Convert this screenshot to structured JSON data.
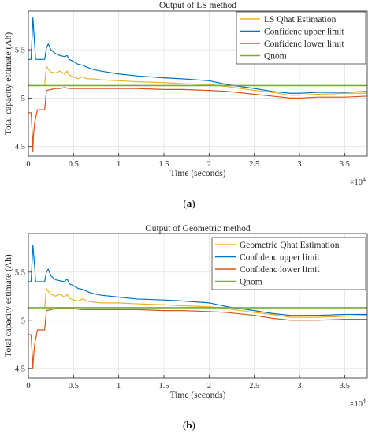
{
  "captions": [
    "(a)",
    "(b)"
  ],
  "caption_letters": [
    "a",
    "b"
  ],
  "x_multiplier": {
    "base": "×10",
    "exp": "4"
  },
  "chart_data": [
    {
      "type": "line",
      "title": "Output of LS method",
      "xlabel": "Time (seconds)",
      "ylabel": "Total capacity estimate (Ah)",
      "xlim": [
        0,
        37500
      ],
      "ylim": [
        4.4,
        5.9
      ],
      "x_ticks": [
        0,
        5000,
        10000,
        15000,
        20000,
        25000,
        30000,
        35000
      ],
      "x_tick_labels": [
        "0",
        "0.5",
        "1",
        "1.5",
        "2",
        "2.5",
        "3",
        "3.5"
      ],
      "y_ticks": [
        4.5,
        5,
        5.5
      ],
      "y_tick_labels": [
        "4.5",
        "5",
        "5.5"
      ],
      "grid": true,
      "legend_position": "top-right",
      "series": [
        {
          "name": "LS Qhat Estimation",
          "color": "#EDB120",
          "x": [
            0,
            500,
            1000,
            1500,
            1800,
            2000,
            2200,
            2500,
            3000,
            3500,
            4000,
            4300,
            4500,
            5000,
            5500,
            6000,
            6500,
            7000,
            8000,
            10000,
            12000,
            15000,
            17000,
            20000,
            22000,
            25000,
            27000,
            29000,
            30000,
            32000,
            35000,
            37500
          ],
          "y": [
            5.13,
            5.13,
            5.13,
            5.13,
            5.13,
            5.33,
            5.3,
            5.27,
            5.26,
            5.28,
            5.25,
            5.28,
            5.24,
            5.22,
            5.2,
            5.22,
            5.2,
            5.2,
            5.19,
            5.18,
            5.17,
            5.16,
            5.15,
            5.14,
            5.12,
            5.08,
            5.06,
            5.03,
            5.03,
            5.04,
            5.05,
            5.05
          ]
        },
        {
          "name": "Confidenc upper limit",
          "color": "#0072BD",
          "x": [
            0,
            300,
            500,
            700,
            800,
            1500,
            1800,
            2000,
            2200,
            2500,
            3000,
            3500,
            4000,
            4300,
            4500,
            5000,
            5500,
            6000,
            6500,
            7000,
            8000,
            10000,
            12000,
            15000,
            17000,
            20000,
            22000,
            25000,
            27000,
            29000,
            30000,
            32000,
            35000,
            37500
          ],
          "y": [
            5.4,
            5.4,
            5.83,
            5.55,
            5.4,
            5.4,
            5.4,
            5.52,
            5.56,
            5.5,
            5.46,
            5.44,
            5.43,
            5.44,
            5.4,
            5.38,
            5.35,
            5.34,
            5.32,
            5.3,
            5.28,
            5.25,
            5.23,
            5.21,
            5.2,
            5.18,
            5.14,
            5.1,
            5.07,
            5.05,
            5.05,
            5.06,
            5.06,
            5.07
          ]
        },
        {
          "name": "Confidenc lower limit",
          "color": "#D95319",
          "x": [
            0,
            300,
            450,
            500,
            550,
            700,
            1000,
            1500,
            1800,
            2000,
            2500,
            3000,
            3500,
            4000,
            4500,
            5000,
            6000,
            8000,
            10000,
            12000,
            15000,
            17000,
            20000,
            22000,
            25000,
            27000,
            29000,
            30000,
            32000,
            35000,
            37500
          ],
          "y": [
            4.85,
            4.85,
            4.6,
            4.45,
            4.6,
            4.75,
            4.88,
            4.88,
            4.88,
            5.08,
            5.09,
            5.1,
            5.1,
            5.11,
            5.1,
            5.1,
            5.1,
            5.1,
            5.1,
            5.1,
            5.09,
            5.09,
            5.08,
            5.07,
            5.04,
            5.02,
            5.0,
            5.0,
            5.01,
            5.01,
            5.02
          ]
        },
        {
          "name": "Qnom",
          "color": "#77AC30",
          "x": [
            0,
            37500
          ],
          "y": [
            5.13,
            5.13
          ]
        }
      ]
    },
    {
      "type": "line",
      "title": "Output of Geometric method",
      "xlabel": "Time (seconds)",
      "ylabel": "Total capacity estimate (Ah)",
      "xlim": [
        0,
        37500
      ],
      "ylim": [
        4.4,
        5.9
      ],
      "x_ticks": [
        0,
        5000,
        10000,
        15000,
        20000,
        25000,
        30000,
        35000
      ],
      "x_tick_labels": [
        "0",
        "0.5",
        "1",
        "1.5",
        "2",
        "2.5",
        "3",
        "3.5"
      ],
      "y_ticks": [
        4.5,
        5,
        5.5
      ],
      "y_tick_labels": [
        "4.5",
        "5",
        "5.5"
      ],
      "grid": true,
      "legend_position": "top-right",
      "series": [
        {
          "name": "Geometric Qhat Estimation",
          "color": "#EDB120",
          "x": [
            0,
            500,
            1000,
            1500,
            1800,
            2000,
            2200,
            2500,
            3000,
            3500,
            4000,
            4300,
            4500,
            5000,
            5500,
            6000,
            6500,
            7000,
            8000,
            10000,
            12000,
            15000,
            17000,
            20000,
            22000,
            25000,
            27000,
            29000,
            30000,
            32000,
            35000,
            37500
          ],
          "y": [
            5.13,
            5.13,
            5.13,
            5.13,
            5.13,
            5.33,
            5.3,
            5.27,
            5.25,
            5.27,
            5.24,
            5.27,
            5.23,
            5.21,
            5.2,
            5.22,
            5.2,
            5.19,
            5.18,
            5.18,
            5.17,
            5.16,
            5.15,
            5.14,
            5.12,
            5.08,
            5.06,
            5.03,
            5.03,
            5.03,
            5.04,
            5.05
          ]
        },
        {
          "name": "Confidenc upper limit",
          "color": "#0072BD",
          "x": [
            0,
            300,
            500,
            700,
            800,
            1500,
            1800,
            2000,
            2200,
            2500,
            3000,
            3500,
            4000,
            4300,
            4500,
            5000,
            5500,
            6000,
            6500,
            7000,
            8000,
            10000,
            12000,
            15000,
            17000,
            20000,
            22000,
            25000,
            27000,
            29000,
            30000,
            32000,
            35000,
            37500
          ],
          "y": [
            5.4,
            5.4,
            5.78,
            5.55,
            5.4,
            5.4,
            5.4,
            5.5,
            5.53,
            5.46,
            5.42,
            5.41,
            5.4,
            5.43,
            5.38,
            5.36,
            5.33,
            5.32,
            5.3,
            5.28,
            5.26,
            5.24,
            5.22,
            5.21,
            5.2,
            5.18,
            5.14,
            5.1,
            5.07,
            5.05,
            5.05,
            5.05,
            5.06,
            5.06
          ]
        },
        {
          "name": "Confidenc lower limit",
          "color": "#D95319",
          "x": [
            0,
            300,
            450,
            500,
            550,
            700,
            1000,
            1500,
            1800,
            2000,
            2500,
            3000,
            3500,
            4000,
            4500,
            5000,
            6000,
            8000,
            10000,
            12000,
            15000,
            17000,
            20000,
            22000,
            25000,
            27000,
            29000,
            30000,
            32000,
            35000,
            37500
          ],
          "y": [
            4.85,
            4.85,
            4.6,
            4.5,
            4.6,
            4.75,
            4.9,
            4.9,
            4.9,
            5.1,
            5.11,
            5.12,
            5.12,
            5.12,
            5.12,
            5.12,
            5.11,
            5.11,
            5.11,
            5.11,
            5.1,
            5.1,
            5.09,
            5.08,
            5.05,
            5.02,
            5.0,
            5.0,
            5.0,
            5.01,
            5.01
          ]
        },
        {
          "name": "Qnom",
          "color": "#77AC30",
          "x": [
            0,
            37500
          ],
          "y": [
            5.13,
            5.13
          ]
        }
      ]
    }
  ]
}
